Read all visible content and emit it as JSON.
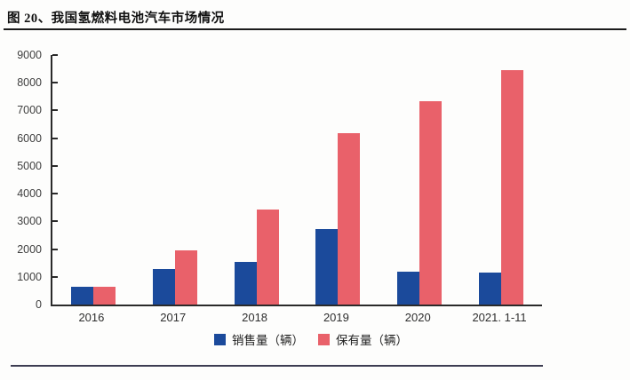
{
  "figure": {
    "title": "图 20、我国氢燃料电池汽车市场情况"
  },
  "chart_data": {
    "type": "bar",
    "title": "我国氢燃料电池汽车市场情况",
    "categories": [
      "2016",
      "2017",
      "2018",
      "2019",
      "2020",
      "2021. 1-11"
    ],
    "series": [
      {
        "name": "销售量（辆）",
        "color": "#1b4a9b",
        "values": [
          629,
          1275,
          1527,
          2737,
          1177,
          1149
        ]
      },
      {
        "name": "保有量（辆）",
        "color": "#e9616a",
        "values": [
          650,
          1950,
          3430,
          6180,
          7350,
          8440
        ]
      }
    ],
    "ylim": [
      0,
      9000
    ],
    "yticks": [
      0,
      1000,
      2000,
      3000,
      4000,
      5000,
      6000,
      7000,
      8000,
      9000
    ],
    "xlabel": "",
    "ylabel": "",
    "grid": false,
    "legend_position": "bottom"
  },
  "colors": {
    "axis": "#2a2a2a",
    "title_rule": "#1b1b1b",
    "bottom_rule": "#3d3d52",
    "tick_label": "#404040",
    "series_sales_blue": "#1b4a9b",
    "series_stock_red": "#e9616a"
  }
}
